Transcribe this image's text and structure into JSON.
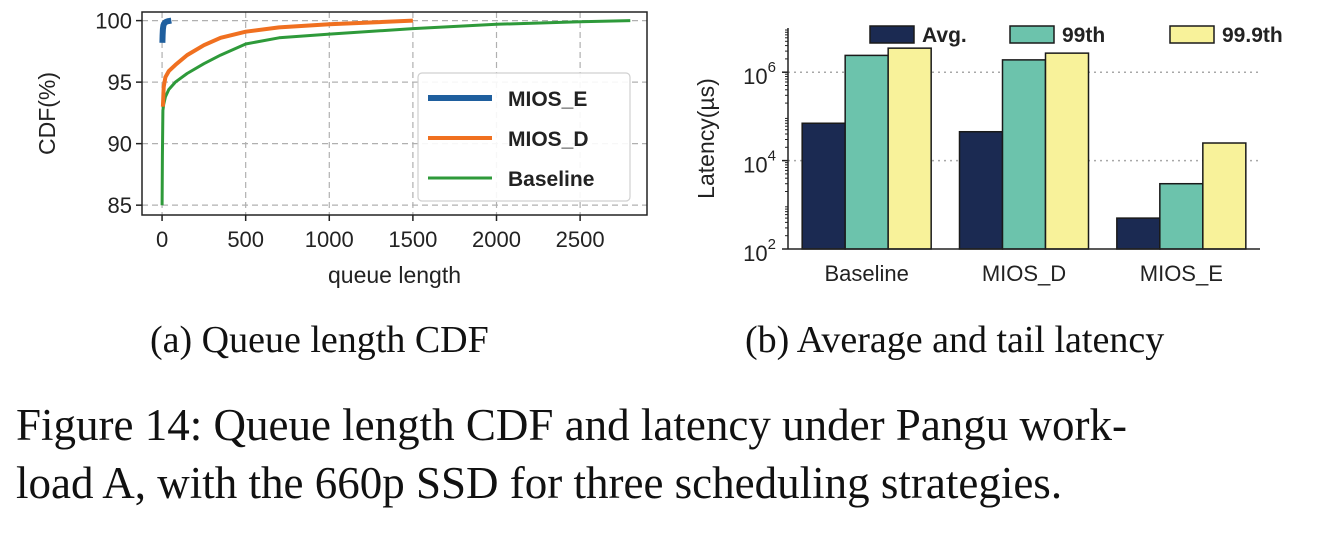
{
  "chart_data": [
    {
      "type": "line",
      "xlabel": "queue length",
      "ylabel": "CDF(%)",
      "xlim": [
        -120,
        2900
      ],
      "ylim": [
        84.2,
        100.7
      ],
      "xticks": [
        "0",
        "500",
        "1000",
        "1500",
        "2000",
        "2500"
      ],
      "yticks": [
        "85",
        "90",
        "95",
        "100"
      ],
      "grid": true,
      "legend": "right",
      "series": [
        {
          "name": "MIOS_E",
          "color": "#1f5f9e",
          "width": 6,
          "x": [
            2,
            3,
            5,
            8,
            12,
            18,
            25,
            35,
            45,
            55
          ],
          "y": [
            98.2,
            98.8,
            99.3,
            99.6,
            99.75,
            99.85,
            99.9,
            99.95,
            99.98,
            100
          ]
        },
        {
          "name": "MIOS_D",
          "color": "#f07020",
          "width": 4,
          "x": [
            5,
            10,
            20,
            40,
            80,
            150,
            250,
            350,
            500,
            700,
            1000,
            1300,
            1500
          ],
          "y": [
            93.0,
            94.6,
            95.4,
            95.9,
            96.4,
            97.2,
            98.0,
            98.6,
            99.1,
            99.45,
            99.7,
            99.88,
            100
          ]
        },
        {
          "name": "Baseline",
          "color": "#2e9a3a",
          "width": 3,
          "x": [
            0,
            2,
            5,
            10,
            20,
            40,
            80,
            150,
            250,
            350,
            500,
            700,
            1000,
            1500,
            2000,
            2500,
            2800
          ],
          "y": [
            85.0,
            89.0,
            92.7,
            93.2,
            93.8,
            94.4,
            95.0,
            95.7,
            96.5,
            97.2,
            98.1,
            98.6,
            98.9,
            99.35,
            99.7,
            99.9,
            100
          ]
        }
      ]
    },
    {
      "type": "bar",
      "ylabel": "Latency(µs)",
      "yscale": "log",
      "ylim": [
        100,
        10000000
      ],
      "ytick_base": "10",
      "yticks": [
        {
          "value": 100,
          "exp": "2"
        },
        {
          "value": 10000,
          "exp": "4"
        },
        {
          "value": 1000000,
          "exp": "6"
        }
      ],
      "categories": [
        "Baseline",
        "MIOS_D",
        "MIOS_E"
      ],
      "grid": true,
      "legend": "top",
      "series": [
        {
          "name": "Avg.",
          "color": "#1b2a52",
          "values": [
            70000,
            45000,
            500
          ]
        },
        {
          "name": "99th",
          "color": "#6cc3ac",
          "values": [
            2400000,
            1900000,
            3000
          ]
        },
        {
          "name": "99.9th",
          "color": "#f8f29a",
          "values": [
            3500000,
            2700000,
            25000
          ]
        }
      ]
    }
  ],
  "captions": {
    "sub_a": "(a)  Queue length CDF",
    "sub_b": "(b)  Average and tail latency",
    "figure_line1": "Figure 14: Queue length CDF and latency under Pangu work-",
    "figure_line2": "load A, with the 660p SSD for three scheduling strategies."
  }
}
